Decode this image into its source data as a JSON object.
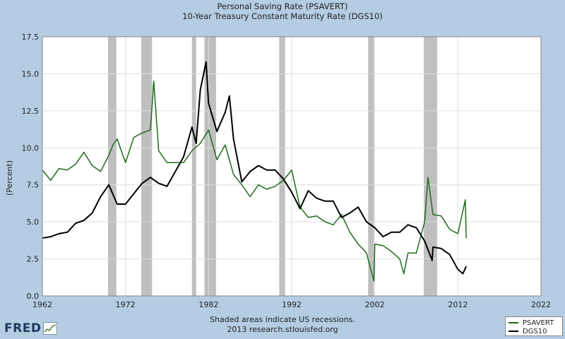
{
  "chart_data": {
    "type": "line",
    "title": "Personal Saving Rate (PSAVERT)",
    "subtitle": "10-Year Treasury Constant Maturity Rate (DGS10)",
    "ylabel": "(Percent)",
    "xlim": [
      1962,
      2022
    ],
    "ylim": [
      0,
      17.5
    ],
    "x_ticks": [
      "1962",
      "1972",
      "1982",
      "1992",
      "2002",
      "2012",
      "2022"
    ],
    "y_ticks": [
      "0.0",
      "2.5",
      "5.0",
      "7.5",
      "10.0",
      "12.5",
      "15.0",
      "17.5"
    ],
    "grid": true,
    "legend_position": "bottom-right",
    "recessions": [
      [
        1969.9,
        1970.9
      ],
      [
        1973.9,
        1975.2
      ],
      [
        1980.0,
        1980.5
      ],
      [
        1981.5,
        1982.9
      ],
      [
        1990.5,
        1991.2
      ],
      [
        2001.2,
        2001.9
      ],
      [
        2007.9,
        2009.5
      ]
    ],
    "series": [
      {
        "name": "PSAVERT",
        "color": "#1f6b1f",
        "x": [
          1962,
          1963,
          1964,
          1965,
          1966,
          1967,
          1968,
          1969,
          1970,
          1970.5,
          1971,
          1972,
          1973,
          1974,
          1975,
          1975.4,
          1976,
          1977,
          1978,
          1979,
          1980,
          1981,
          1982,
          1983,
          1984,
          1985,
          1986,
          1987,
          1988,
          1989,
          1990,
          1991,
          1992,
          1993,
          1994,
          1995,
          1996,
          1997,
          1998,
          1999,
          2000,
          2001,
          2001.9,
          2002,
          2003,
          2004,
          2005,
          2005.5,
          2006,
          2007,
          2008,
          2008.4,
          2009,
          2010,
          2011,
          2012,
          2012.9,
          2013.0
        ],
        "y": [
          8.5,
          7.8,
          8.6,
          8.5,
          8.9,
          9.7,
          8.8,
          8.4,
          9.5,
          10.2,
          10.6,
          9.0,
          10.7,
          11.0,
          11.2,
          14.5,
          9.8,
          9.0,
          9.0,
          9.0,
          9.8,
          10.3,
          11.2,
          9.2,
          10.2,
          8.2,
          7.5,
          6.7,
          7.5,
          7.2,
          7.4,
          7.8,
          8.5,
          6.0,
          5.3,
          5.4,
          5.0,
          4.8,
          5.5,
          4.3,
          3.5,
          2.9,
          1.0,
          3.5,
          3.4,
          3.0,
          2.5,
          1.5,
          2.9,
          2.9,
          5.0,
          8.0,
          5.5,
          5.4,
          4.5,
          4.2,
          6.5,
          3.9
        ]
      },
      {
        "name": "DGS10",
        "color": "#000000",
        "x": [
          1962,
          1963,
          1964,
          1965,
          1966,
          1967,
          1968,
          1969,
          1970,
          1971,
          1972,
          1973,
          1974,
          1975,
          1976,
          1977,
          1978,
          1979,
          1980,
          1980.5,
          1981,
          1981.7,
          1982,
          1983,
          1984,
          1984.5,
          1985,
          1986,
          1987,
          1988,
          1989,
          1990,
          1991,
          1992,
          1993,
          1994,
          1995,
          1996,
          1997,
          1998,
          1999,
          2000,
          2001,
          2002,
          2003,
          2004,
          2005,
          2006,
          2007,
          2008,
          2008.9,
          2009,
          2010,
          2011,
          2012,
          2012.6,
          2013
        ],
        "y": [
          3.9,
          4.0,
          4.2,
          4.3,
          4.9,
          5.1,
          5.6,
          6.7,
          7.5,
          6.2,
          6.2,
          6.9,
          7.6,
          8.0,
          7.6,
          7.4,
          8.4,
          9.4,
          11.4,
          10.3,
          13.9,
          15.8,
          13.0,
          11.1,
          12.4,
          13.5,
          10.6,
          7.7,
          8.4,
          8.8,
          8.5,
          8.5,
          7.9,
          7.0,
          5.9,
          7.1,
          6.6,
          6.4,
          6.4,
          5.3,
          5.6,
          6.0,
          5.0,
          4.6,
          4.0,
          4.3,
          4.3,
          4.8,
          4.6,
          3.7,
          2.4,
          3.3,
          3.2,
          2.8,
          1.8,
          1.5,
          2.0
        ]
      }
    ]
  },
  "footer": {
    "recession_note": "Shaded areas indicate US recessions.",
    "source": "2013 research.stlouisfed.org"
  },
  "logo": {
    "text": "FRED"
  }
}
